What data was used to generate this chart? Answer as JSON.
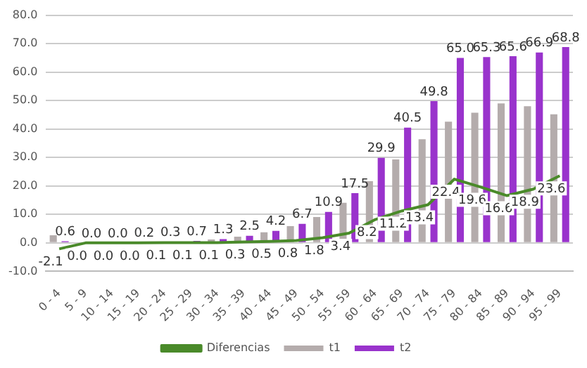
{
  "chart_data": {
    "type": "bar",
    "categories": [
      "0 - 4",
      "5 - 9",
      "10 - 14",
      "15 - 19",
      "20 - 24",
      "25 - 29",
      "30 - 34",
      "35 - 39",
      "40 - 44",
      "45 - 49",
      "50 - 54",
      "55 - 59",
      "60 - 64",
      "65 - 69",
      "70 - 74",
      "75 - 79",
      "80 - 84",
      "85 - 89",
      "90 - 94",
      "95 - 99"
    ],
    "series": [
      {
        "name": "t1",
        "color": "#b4acac",
        "values": [
          2.7,
          0.0,
          0.0,
          0.2,
          0.2,
          null,
          1.2,
          2.2,
          3.7,
          5.9,
          9.1,
          14.1,
          21.7,
          29.3,
          36.4,
          42.6,
          45.7,
          49.0,
          48.0,
          45.2
        ]
      },
      {
        "name": "t2",
        "color": "#9933cc",
        "values": [
          0.6,
          0.0,
          0.0,
          0.2,
          0.3,
          0.7,
          1.3,
          2.5,
          4.2,
          6.7,
          10.9,
          17.5,
          29.9,
          40.5,
          49.8,
          65.0,
          65.3,
          65.6,
          66.9,
          68.8
        ],
        "value_labels": [
          "0.6",
          "0.0",
          "0.0",
          "0.2",
          "0.3",
          "0.7",
          "1.3",
          "2.5",
          "4.2",
          "6.7",
          "10.9",
          "17.5",
          "29.9",
          "40.5",
          "49.8",
          "65.0",
          "65.3",
          "65.6",
          "66.9",
          "68.8"
        ]
      },
      {
        "name": "Diferencias",
        "type": "line",
        "color": "#4a8a2a",
        "values": [
          -2.1,
          0.0,
          0.0,
          0.0,
          0.1,
          0.1,
          0.1,
          0.3,
          0.5,
          0.8,
          1.8,
          3.4,
          8.2,
          11.2,
          13.4,
          22.4,
          19.6,
          16.6,
          18.9,
          23.6
        ],
        "value_labels": [
          "-2.1",
          "0.0",
          "0.0",
          "0.0",
          "0.1",
          "0.1",
          "0.1",
          "0.3",
          "0.5",
          "0.8",
          "1.8",
          "3.4",
          "8.2",
          "11.2",
          "13.4",
          "22.4",
          "19.6",
          "16.6",
          "18.9",
          "23.6"
        ]
      }
    ],
    "ylim": [
      -10,
      80
    ],
    "yticks": [
      {
        "value": -10,
        "label": "-10.0"
      },
      {
        "value": 0,
        "label": "0.0"
      },
      {
        "value": 10,
        "label": "10.0"
      },
      {
        "value": 20,
        "label": "20.0"
      },
      {
        "value": 30,
        "label": "30.0"
      },
      {
        "value": 40,
        "label": "40.0"
      },
      {
        "value": 50,
        "label": "50.0"
      },
      {
        "value": 60,
        "label": "60.0"
      },
      {
        "value": 70,
        "label": "70.0"
      },
      {
        "value": 80,
        "label": "80.0"
      }
    ],
    "grid": "y",
    "legend": "bottom",
    "marker": "none"
  }
}
